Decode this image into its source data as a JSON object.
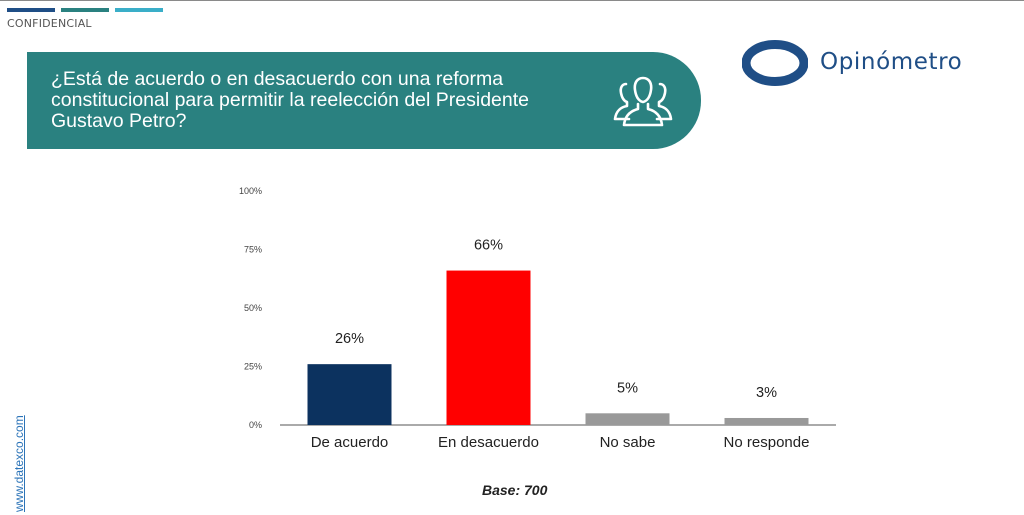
{
  "header": {
    "confidential": "CONFIDENCIAL",
    "accent_colors": [
      "#1f4e86",
      "#2a8180",
      "#3aaec8"
    ]
  },
  "banner": {
    "question": "¿Está de acuerdo o en desacuerdo con una reforma constitucional para permitir la reelección del Presidente Gustavo Petro?",
    "icon": "people-group-icon",
    "color": "#2a8180"
  },
  "logo": {
    "name": "Opinómetro",
    "color": "#1f4e86"
  },
  "side": {
    "url": "www.datexco.com"
  },
  "chart_data": {
    "type": "bar",
    "categories": [
      "De acuerdo",
      "En desacuerdo",
      "No sabe",
      "No responde"
    ],
    "values": [
      26,
      66,
      5,
      3
    ],
    "value_labels": [
      "26%",
      "66%",
      "5%",
      "3%"
    ],
    "colors": [
      "#0c325f",
      "#ff0000",
      "#999999",
      "#999999"
    ],
    "yticks": [
      "0%",
      "25%",
      "50%",
      "75%",
      "100%"
    ],
    "ylim": [
      0,
      100
    ],
    "grid": false,
    "title": "",
    "xlabel": "",
    "ylabel": ""
  },
  "footer": {
    "base": "Base: 700"
  }
}
